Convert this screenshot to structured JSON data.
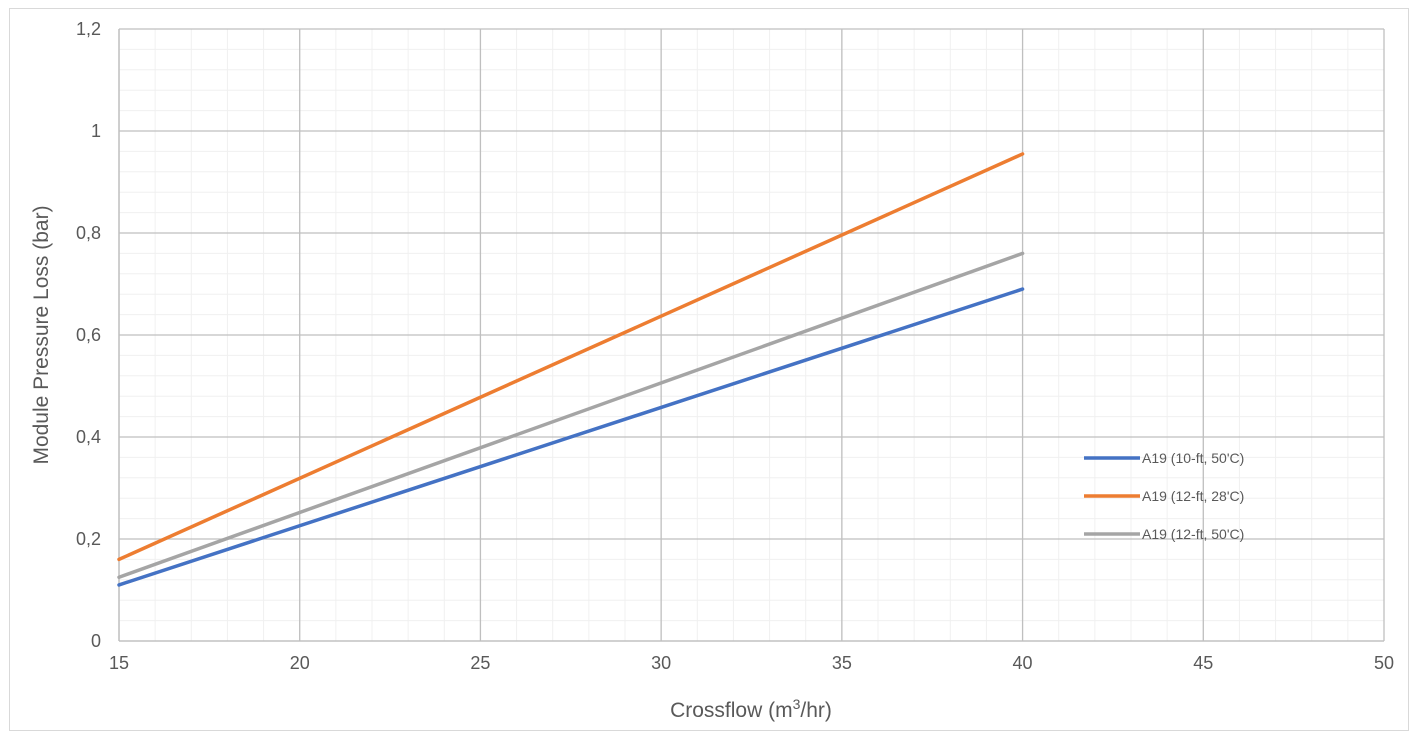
{
  "chart_data": {
    "type": "line",
    "title": "",
    "xlabel": "Crossflow (m",
    "xlabel_sup": "3",
    "xlabel_tail": "/hr)",
    "ylabel": "Module Pressure Loss  (bar)",
    "xlim": [
      15,
      50
    ],
    "ylim": [
      0,
      1.2
    ],
    "x_ticks": [
      "15",
      "20",
      "25",
      "30",
      "35",
      "40",
      "45",
      "50"
    ],
    "y_ticks": [
      "0",
      "0,2",
      "0,4",
      "0,6",
      "0,8",
      "1",
      "1,2"
    ],
    "grid": true,
    "legend_position": "right",
    "series": [
      {
        "name": "A19 (10-ft, 50'C)",
        "color": "#4472C4",
        "x": [
          15,
          40
        ],
        "y": [
          0.11,
          0.69
        ]
      },
      {
        "name": "A19 (12-ft, 28'C)",
        "color": "#ED7D31",
        "x": [
          15,
          40
        ],
        "y": [
          0.16,
          0.955
        ]
      },
      {
        "name": "A19 (12-ft, 50'C)",
        "color": "#A5A5A5",
        "x": [
          15,
          40
        ],
        "y": [
          0.125,
          0.76
        ]
      }
    ]
  }
}
